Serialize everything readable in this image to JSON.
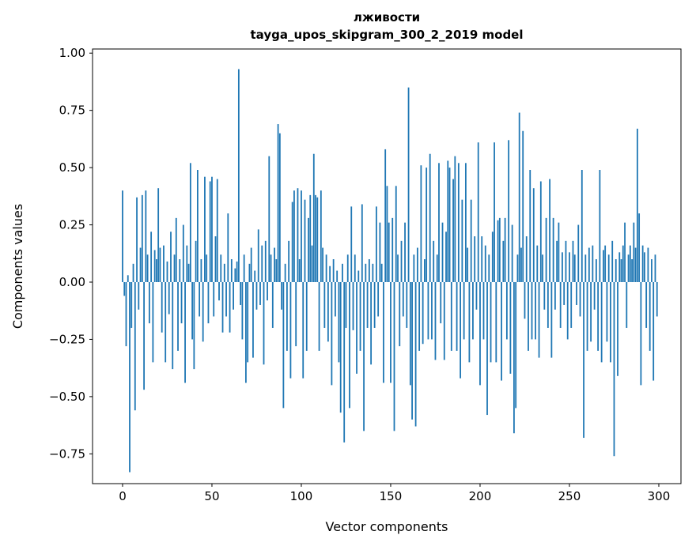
{
  "chart_data": {
    "type": "bar",
    "title_line1": "лживости",
    "title_line2": "tayga_upos_skipgram_300_2_2019 model",
    "xlabel": "Vector components",
    "ylabel": "Components values",
    "bar_color": "#1f77b4",
    "axes_color": "#000000",
    "background_color": "#ffffff",
    "x_ticks": [
      0,
      50,
      100,
      150,
      200,
      250,
      300
    ],
    "x_tick_labels": [
      "0",
      "50",
      "100",
      "150",
      "200",
      "250",
      "300"
    ],
    "y_ticks": [
      1.0,
      0.75,
      0.5,
      0.25,
      0.0,
      -0.25,
      -0.5,
      -0.75
    ],
    "y_tick_labels": [
      "1.00",
      "0.75",
      "0.50",
      "0.25",
      "0.00",
      "−0.25",
      "−0.50",
      "−0.75"
    ],
    "xlim": [
      -16.8,
      312.4
    ],
    "ylim": [
      -0.88,
      1.018
    ],
    "n_components": 300,
    "values": [
      0.4,
      -0.06,
      -0.28,
      0.03,
      -0.83,
      -0.2,
      0.08,
      -0.56,
      0.37,
      -0.12,
      0.15,
      0.38,
      -0.47,
      0.4,
      0.12,
      -0.18,
      0.22,
      -0.35,
      0.14,
      0.1,
      0.41,
      0.15,
      -0.22,
      0.16,
      -0.35,
      0.09,
      -0.14,
      0.22,
      -0.38,
      0.12,
      0.28,
      -0.3,
      0.1,
      -0.18,
      0.25,
      -0.44,
      0.16,
      0.08,
      0.52,
      -0.25,
      -0.38,
      0.18,
      0.49,
      -0.15,
      0.1,
      -0.26,
      0.46,
      0.12,
      -0.18,
      0.44,
      0.46,
      -0.15,
      0.2,
      0.45,
      -0.08,
      0.12,
      -0.22,
      0.08,
      -0.15,
      0.3,
      -0.22,
      0.1,
      -0.12,
      0.06,
      0.09,
      0.93,
      -0.1,
      -0.25,
      0.12,
      -0.44,
      -0.35,
      0.08,
      0.15,
      -0.33,
      0.05,
      -0.12,
      0.23,
      -0.1,
      0.16,
      -0.36,
      0.18,
      -0.08,
      0.55,
      0.12,
      -0.2,
      0.15,
      0.1,
      0.69,
      0.65,
      -0.12,
      -0.55,
      0.08,
      -0.3,
      0.18,
      -0.42,
      0.35,
      0.4,
      -0.28,
      0.41,
      0.1,
      0.4,
      -0.42,
      0.36,
      -0.3,
      0.28,
      0.38,
      0.16,
      0.56,
      0.38,
      0.37,
      -0.3,
      0.4,
      0.15,
      -0.2,
      0.12,
      -0.26,
      0.07,
      -0.45,
      0.1,
      -0.15,
      0.05,
      -0.35,
      -0.57,
      0.08,
      -0.7,
      -0.2,
      0.12,
      -0.55,
      0.33,
      -0.21,
      0.12,
      -0.4,
      0.05,
      -0.3,
      0.34,
      -0.65,
      0.08,
      -0.2,
      0.1,
      -0.36,
      0.08,
      -0.2,
      0.33,
      -0.15,
      0.26,
      0.08,
      -0.44,
      0.58,
      0.42,
      0.26,
      -0.44,
      0.28,
      -0.65,
      0.42,
      0.12,
      -0.28,
      0.18,
      -0.15,
      0.26,
      -0.2,
      0.85,
      -0.45,
      -0.6,
      0.12,
      -0.63,
      0.15,
      -0.3,
      0.51,
      -0.27,
      0.1,
      0.5,
      -0.25,
      0.56,
      -0.25,
      0.18,
      -0.34,
      0.12,
      0.52,
      -0.18,
      0.26,
      -0.34,
      0.22,
      0.53,
      0.5,
      -0.3,
      0.45,
      0.55,
      -0.3,
      0.52,
      -0.42,
      0.36,
      -0.25,
      0.52,
      0.15,
      -0.35,
      0.36,
      -0.25,
      0.2,
      -0.12,
      0.61,
      -0.45,
      0.2,
      -0.25,
      0.16,
      -0.58,
      0.12,
      -0.35,
      0.22,
      0.61,
      -0.35,
      0.27,
      0.28,
      -0.43,
      0.18,
      0.28,
      -0.25,
      0.62,
      -0.4,
      0.25,
      -0.66,
      -0.55,
      0.12,
      0.74,
      0.15,
      0.66,
      -0.16,
      0.2,
      -0.3,
      0.49,
      -0.25,
      0.41,
      -0.25,
      0.16,
      -0.33,
      0.44,
      0.12,
      -0.12,
      0.28,
      -0.2,
      0.45,
      -0.33,
      0.28,
      -0.12,
      0.18,
      0.26,
      -0.2,
      0.13,
      -0.1,
      0.18,
      -0.25,
      0.13,
      -0.2,
      0.18,
      0.12,
      -0.1,
      0.25,
      -0.15,
      0.49,
      -0.68,
      0.12,
      -0.3,
      0.15,
      -0.26,
      0.16,
      -0.12,
      0.1,
      -0.3,
      0.49,
      -0.35,
      0.14,
      0.16,
      -0.26,
      0.12,
      -0.35,
      0.18,
      -0.76,
      0.1,
      -0.41,
      0.13,
      0.1,
      0.16,
      0.26,
      -0.2,
      0.12,
      0.16,
      0.1,
      0.26,
      0.15,
      0.67,
      0.3,
      -0.45,
      0.16,
      0.13,
      -0.2,
      0.15,
      -0.3,
      0.1,
      -0.43,
      0.12,
      -0.15
    ]
  }
}
